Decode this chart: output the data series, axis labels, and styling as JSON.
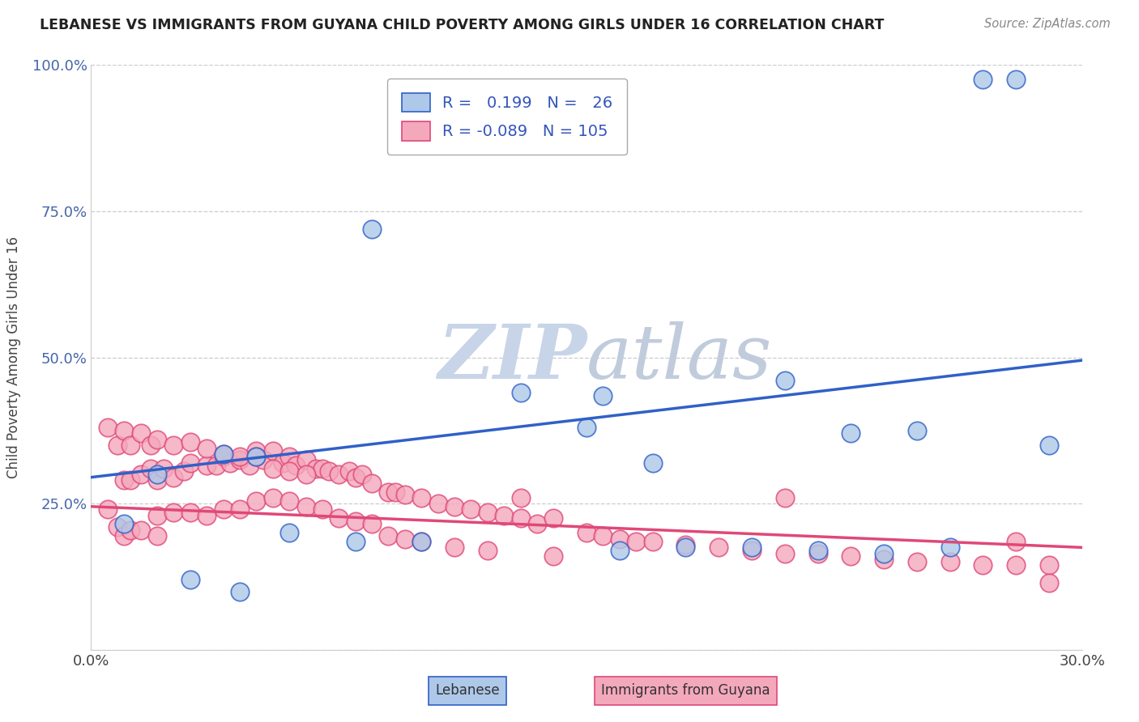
{
  "title": "LEBANESE VS IMMIGRANTS FROM GUYANA CHILD POVERTY AMONG GIRLS UNDER 16 CORRELATION CHART",
  "source": "Source: ZipAtlas.com",
  "ylabel": "Child Poverty Among Girls Under 16",
  "xlabel": "",
  "xlim": [
    0.0,
    0.3
  ],
  "ylim": [
    0.0,
    1.0
  ],
  "xticks": [
    0.0,
    0.3
  ],
  "xtick_labels": [
    "0.0%",
    "30.0%"
  ],
  "yticks": [
    0.0,
    0.25,
    0.5,
    0.75,
    1.0
  ],
  "ytick_labels": [
    "",
    "25.0%",
    "50.0%",
    "75.0%",
    "100.0%"
  ],
  "blue_R": 0.199,
  "blue_N": 26,
  "pink_R": -0.089,
  "pink_N": 105,
  "blue_color": "#adc8e8",
  "pink_color": "#f4a8bc",
  "blue_line_color": "#3060c8",
  "pink_line_color": "#e04878",
  "watermark_zip": "ZIP",
  "watermark_atlas": "atlas",
  "watermark_color_zip": "#c8d4e8",
  "watermark_color_atlas": "#c0ccdc",
  "legend_label_blue": "Lebanese",
  "legend_label_pink": "Immigrants from Guyana",
  "blue_scatter_x": [
    0.27,
    0.28,
    0.085,
    0.13,
    0.155,
    0.05,
    0.04,
    0.02,
    0.01,
    0.06,
    0.08,
    0.1,
    0.16,
    0.18,
    0.2,
    0.22,
    0.24,
    0.26,
    0.29,
    0.03,
    0.15,
    0.17,
    0.21,
    0.23,
    0.25,
    0.045
  ],
  "blue_scatter_y": [
    0.975,
    0.975,
    0.72,
    0.44,
    0.435,
    0.33,
    0.335,
    0.3,
    0.215,
    0.2,
    0.185,
    0.185,
    0.17,
    0.175,
    0.175,
    0.17,
    0.165,
    0.175,
    0.35,
    0.12,
    0.38,
    0.32,
    0.46,
    0.37,
    0.375,
    0.1
  ],
  "pink_scatter_x": [
    0.005,
    0.008,
    0.01,
    0.01,
    0.012,
    0.012,
    0.015,
    0.015,
    0.018,
    0.02,
    0.02,
    0.02,
    0.022,
    0.025,
    0.025,
    0.028,
    0.03,
    0.03,
    0.035,
    0.035,
    0.038,
    0.04,
    0.04,
    0.042,
    0.045,
    0.045,
    0.048,
    0.05,
    0.05,
    0.052,
    0.055,
    0.055,
    0.058,
    0.06,
    0.06,
    0.062,
    0.065,
    0.065,
    0.068,
    0.07,
    0.07,
    0.072,
    0.075,
    0.075,
    0.078,
    0.08,
    0.08,
    0.082,
    0.085,
    0.085,
    0.09,
    0.09,
    0.092,
    0.095,
    0.095,
    0.1,
    0.1,
    0.105,
    0.11,
    0.11,
    0.115,
    0.12,
    0.12,
    0.125,
    0.13,
    0.135,
    0.14,
    0.14,
    0.15,
    0.155,
    0.16,
    0.165,
    0.17,
    0.18,
    0.19,
    0.2,
    0.21,
    0.22,
    0.23,
    0.24,
    0.25,
    0.26,
    0.27,
    0.28,
    0.29,
    0.005,
    0.008,
    0.01,
    0.012,
    0.015,
    0.018,
    0.02,
    0.025,
    0.03,
    0.035,
    0.04,
    0.045,
    0.05,
    0.055,
    0.06,
    0.065,
    0.13,
    0.21,
    0.28,
    0.29
  ],
  "pink_scatter_y": [
    0.24,
    0.21,
    0.29,
    0.195,
    0.29,
    0.205,
    0.3,
    0.205,
    0.31,
    0.29,
    0.23,
    0.195,
    0.31,
    0.295,
    0.235,
    0.305,
    0.32,
    0.235,
    0.315,
    0.23,
    0.315,
    0.33,
    0.24,
    0.32,
    0.325,
    0.24,
    0.315,
    0.34,
    0.255,
    0.325,
    0.34,
    0.26,
    0.32,
    0.33,
    0.255,
    0.315,
    0.325,
    0.245,
    0.31,
    0.31,
    0.24,
    0.305,
    0.3,
    0.225,
    0.305,
    0.295,
    0.22,
    0.3,
    0.285,
    0.215,
    0.27,
    0.195,
    0.27,
    0.265,
    0.19,
    0.26,
    0.185,
    0.25,
    0.245,
    0.175,
    0.24,
    0.235,
    0.17,
    0.23,
    0.225,
    0.215,
    0.225,
    0.16,
    0.2,
    0.195,
    0.19,
    0.185,
    0.185,
    0.18,
    0.175,
    0.17,
    0.165,
    0.165,
    0.16,
    0.155,
    0.15,
    0.15,
    0.145,
    0.145,
    0.145,
    0.38,
    0.35,
    0.375,
    0.35,
    0.37,
    0.35,
    0.36,
    0.35,
    0.355,
    0.345,
    0.335,
    0.33,
    0.33,
    0.31,
    0.305,
    0.3,
    0.26,
    0.26,
    0.185,
    0.115
  ]
}
